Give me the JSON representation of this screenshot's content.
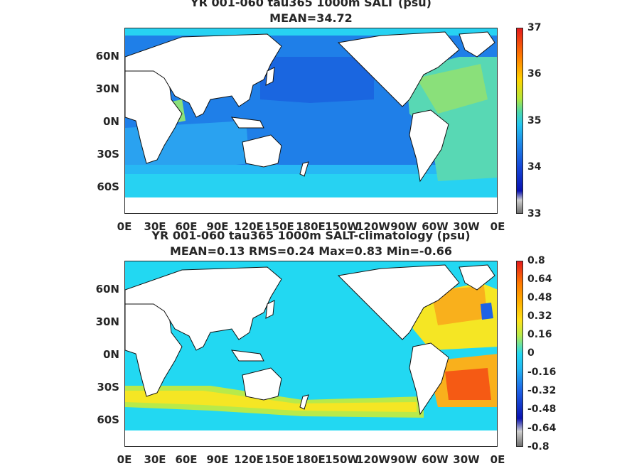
{
  "panels": [
    {
      "title_line1": "YR 001-060 tau365 1000m SALT (psu)",
      "title_line2": "MEAN=34.72",
      "lat_labels": [
        "60N",
        "30N",
        "0N",
        "30S",
        "60S"
      ],
      "lon_labels": [
        "0E",
        "30E",
        "60E",
        "90E",
        "120E",
        "150E",
        "180E",
        "150W",
        "120W",
        "90W",
        "60W",
        "30W",
        "0E"
      ],
      "colorbar_labels": [
        "37",
        "36",
        "35",
        "34",
        "33"
      ],
      "colors": {
        "pacific": "#1f7fe8",
        "pacific_north": "#1a66e0",
        "indian": "#2aa2f0",
        "southern": "#27d2f2",
        "atlantic": "#58d8b4",
        "mediterranean": "#c6e848",
        "land": "#ffffff"
      }
    },
    {
      "title_line1": "YR 001-060 tau365 1000m SALT-climatology (psu)",
      "title_line2": "MEAN=0.13   RMS=0.24   Max=0.83   Min=-0.66",
      "lat_labels": [
        "60N",
        "30N",
        "0N",
        "30S",
        "60S"
      ],
      "lon_labels": [
        "0E",
        "30E",
        "60E",
        "90E",
        "120E",
        "150E",
        "180E",
        "150W",
        "120W",
        "90W",
        "60W",
        "30W",
        "0E"
      ],
      "colorbar_labels": [
        "0.8",
        "0.64",
        "0.48",
        "0.32",
        "0.16",
        "0",
        "-0.16",
        "-0.32",
        "-0.48",
        "-0.64",
        "-0.8"
      ],
      "colors": {
        "background": "#22d8f2",
        "positive_band": "#f5e624",
        "strong_positive": "#f55a14",
        "north_atlantic": "#f9b01c",
        "negative": "#1e62e6",
        "land": "#ffffff"
      }
    }
  ]
}
